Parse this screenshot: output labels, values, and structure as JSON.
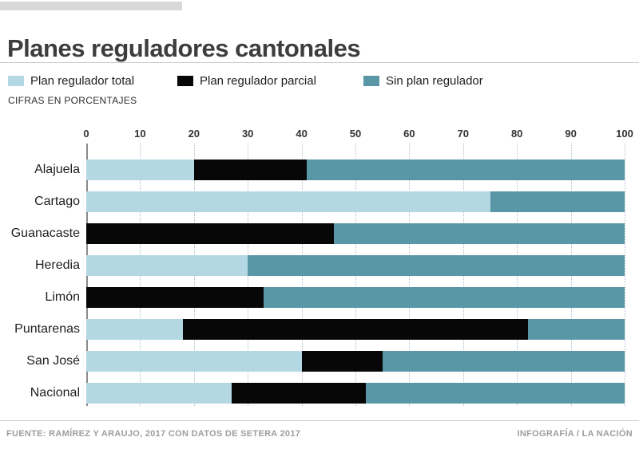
{
  "header": {
    "title": "Planes reguladores cantonales"
  },
  "legend": {
    "items": [
      {
        "label": "Plan regulador total",
        "color": "#b3d8e3"
      },
      {
        "label": "Plan regulador parcial",
        "color": "#070707"
      },
      {
        "label": "Sin plan regulador",
        "color": "#5a97a6"
      }
    ]
  },
  "units_note": "CIFRAS EN PORCENTAJES",
  "chart_data": {
    "type": "bar",
    "orientation": "horizontal",
    "stacked": true,
    "title": "Planes reguladores cantonales",
    "units": "percent",
    "categories": [
      "Alajuela",
      "Cartago",
      "Guanacaste",
      "Heredia",
      "Limón",
      "Puntarenas",
      "San José",
      "Nacional"
    ],
    "series": [
      {
        "name": "Plan regulador total",
        "color": "#b3d8e3",
        "values": [
          20,
          75,
          0,
          30,
          0,
          18,
          40,
          27
        ]
      },
      {
        "name": "Plan regulador parcial",
        "color": "#070707",
        "values": [
          21,
          0,
          46,
          0,
          33,
          64,
          15,
          25
        ]
      },
      {
        "name": "Sin plan regulador",
        "color": "#5a97a6",
        "values": [
          59,
          25,
          54,
          70,
          67,
          18,
          45,
          48
        ]
      }
    ],
    "xlim": [
      0,
      100
    ],
    "xticks": [
      0,
      10,
      20,
      30,
      40,
      50,
      60,
      70,
      80,
      90,
      100
    ],
    "grid": true,
    "legend_position": "top"
  },
  "footer": {
    "source": "FUENTE: RAMÍREZ Y ARAUJO, 2017 CON DATOS DE SETERA 2017",
    "credit": "INFOGRAFÍA / LA NACIÓN"
  }
}
